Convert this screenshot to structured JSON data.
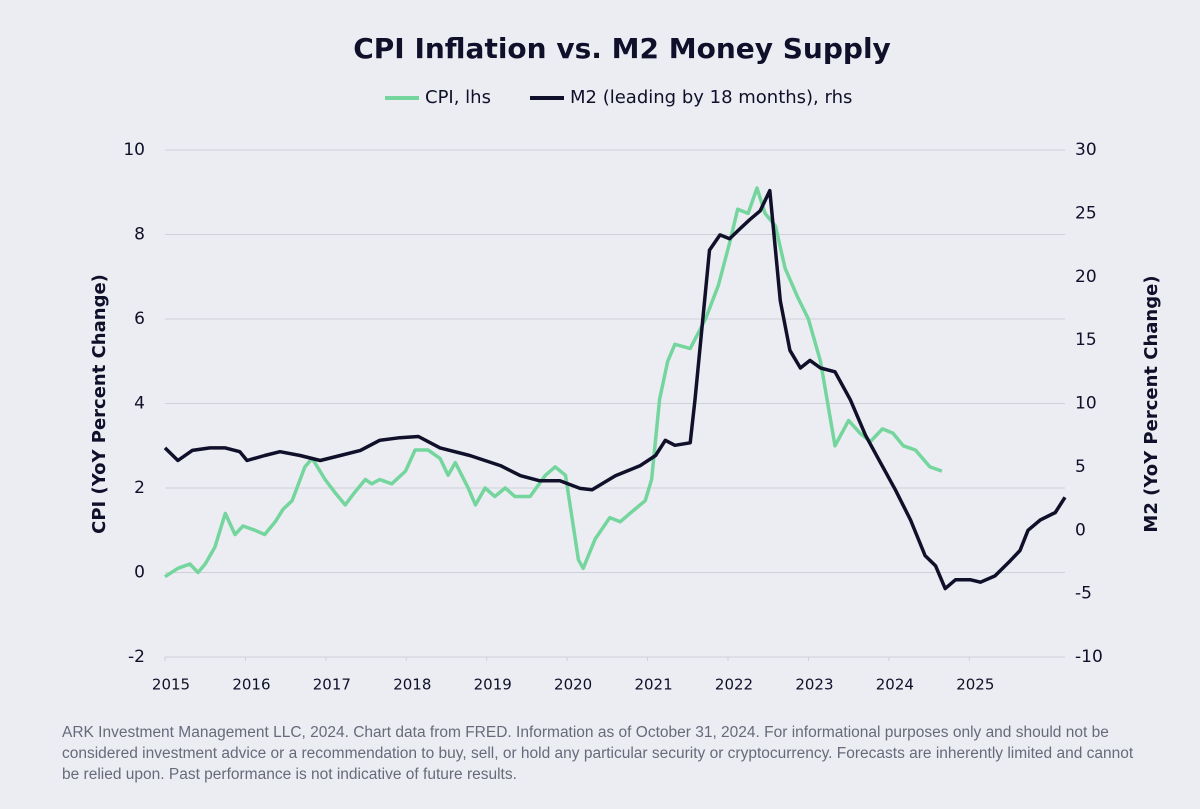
{
  "chart_data": {
    "type": "line",
    "title": "CPI Inflation vs. M2 Money Supply",
    "ylabel": "CPI (YoY Percent Change)",
    "y2label": "M2 (YoY Percent Change)",
    "footnote": "ARK Investment Management LLC, 2024. Chart data from FRED. Information as of October 31, 2024. For informational purposes only and should not be considered investment advice or a recommendation to buy, sell, or hold any particular security or cryptocurrency. Forecasts are inherently limited and cannot be relied upon. Past performance is not indicative of future results.",
    "xlim": [
      2015,
      2026.19
    ],
    "xticks": [
      2015,
      2016,
      2017,
      2018,
      2019,
      2020,
      2021,
      2022,
      2023,
      2024,
      2025
    ],
    "ylim": [
      -2,
      10
    ],
    "yticks": [
      -2,
      0,
      2,
      4,
      6,
      8,
      10
    ],
    "y2lim": [
      -10,
      30
    ],
    "y2ticks": [
      -10,
      -5,
      0,
      5,
      10,
      15,
      20,
      25,
      30
    ],
    "grid": true,
    "legend": "top",
    "series": [
      {
        "name": "CPI, lhs",
        "color": "#74d59d",
        "x": [
          2015.0,
          2015.16,
          2015.31,
          2015.41,
          2015.5,
          2015.62,
          2015.75,
          2015.87,
          2015.97,
          2016.12,
          2016.24,
          2016.37,
          2016.47,
          2016.58,
          2016.74,
          2016.83,
          2016.99,
          2017.11,
          2017.24,
          2017.36,
          2017.49,
          2017.57,
          2017.67,
          2017.82,
          2017.99,
          2018.11,
          2018.27,
          2018.42,
          2018.52,
          2018.61,
          2018.77,
          2018.86,
          2018.98,
          2019.1,
          2019.23,
          2019.35,
          2019.54,
          2019.73,
          2019.85,
          2019.98,
          2020.06,
          2020.14,
          2020.2,
          2020.35,
          2020.53,
          2020.66,
          2020.78,
          2020.97,
          2021.05,
          2021.15,
          2021.25,
          2021.34,
          2021.53,
          2021.72,
          2021.88,
          2022.02,
          2022.12,
          2022.25,
          2022.36,
          2022.46,
          2022.59,
          2022.71,
          2022.87,
          2023.0,
          2023.15,
          2023.33,
          2023.5,
          2023.64,
          2023.77,
          2023.92,
          2024.05,
          2024.18,
          2024.33,
          2024.51,
          2024.66
        ],
        "values": [
          -0.1,
          0.1,
          0.2,
          0.0,
          0.2,
          0.6,
          1.4,
          0.9,
          1.1,
          1.0,
          0.9,
          1.2,
          1.5,
          1.7,
          2.5,
          2.7,
          2.2,
          1.9,
          1.6,
          1.9,
          2.2,
          2.1,
          2.2,
          2.1,
          2.4,
          2.9,
          2.9,
          2.7,
          2.3,
          2.6,
          2.0,
          1.6,
          2.0,
          1.8,
          2.0,
          1.8,
          1.8,
          2.3,
          2.5,
          2.3,
          1.3,
          0.3,
          0.1,
          0.8,
          1.3,
          1.2,
          1.4,
          1.7,
          2.2,
          4.1,
          5.0,
          5.4,
          5.3,
          6.0,
          6.8,
          7.8,
          8.6,
          8.5,
          9.1,
          8.5,
          8.2,
          7.2,
          6.5,
          6.0,
          5.0,
          3.0,
          3.6,
          3.3,
          3.1,
          3.4,
          3.3,
          3.0,
          2.9,
          2.5,
          2.4
        ]
      },
      {
        "name": "M2 (leading by 18 months), rhs",
        "color": "#10102a",
        "axis": "y2",
        "x": [
          2015.0,
          2015.16,
          2015.34,
          2015.56,
          2015.75,
          2015.93,
          2016.02,
          2016.24,
          2016.43,
          2016.68,
          2016.93,
          2017.18,
          2017.43,
          2017.67,
          2017.92,
          2018.15,
          2018.42,
          2018.79,
          2019.17,
          2019.42,
          2019.66,
          2019.91,
          2020.16,
          2020.31,
          2020.6,
          2020.91,
          2021.1,
          2021.22,
          2021.34,
          2021.53,
          2021.59,
          2021.77,
          2021.9,
          2022.02,
          2022.15,
          2022.27,
          2022.4,
          2022.52,
          2022.65,
          2022.77,
          2022.9,
          2023.02,
          2023.15,
          2023.33,
          2023.52,
          2023.71,
          2023.89,
          2024.08,
          2024.27,
          2024.45,
          2024.58,
          2024.7,
          2024.83,
          2025.01,
          2025.14,
          2025.32,
          2025.51,
          2025.63,
          2025.73,
          2025.88,
          2026.07,
          2026.19
        ],
        "values": [
          6.5,
          5.5,
          6.3,
          6.5,
          6.5,
          6.2,
          5.5,
          5.9,
          6.2,
          5.9,
          5.5,
          5.9,
          6.3,
          7.1,
          7.3,
          7.4,
          6.5,
          5.9,
          5.1,
          4.3,
          3.9,
          3.9,
          3.3,
          3.2,
          4.3,
          5.1,
          5.9,
          7.1,
          6.7,
          6.9,
          10.3,
          22.1,
          23.3,
          23.0,
          23.8,
          24.5,
          25.2,
          26.8,
          18.1,
          14.2,
          12.8,
          13.4,
          12.8,
          12.5,
          10.3,
          7.5,
          5.4,
          3.2,
          0.8,
          -2.0,
          -2.8,
          -4.6,
          -3.9,
          -3.9,
          -4.1,
          -3.6,
          -2.4,
          -1.6,
          0.0,
          0.8,
          1.4,
          2.6
        ]
      }
    ]
  }
}
